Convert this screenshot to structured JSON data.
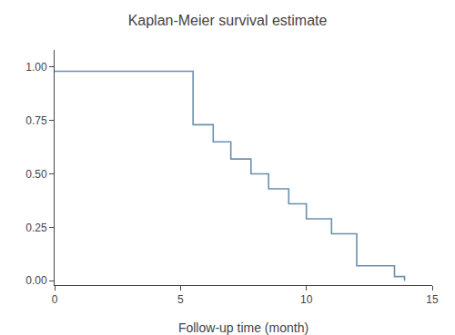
{
  "chart_data": {
    "type": "line",
    "title": "Kaplan-Meier survival estimate",
    "xlabel": "Follow-up time (month)",
    "color": "#6b8fad",
    "x": [
      0,
      5.5,
      5.5,
      6.3,
      6.3,
      7.0,
      7.0,
      7.8,
      7.8,
      8.5,
      8.5,
      9.3,
      9.3,
      10.0,
      10.0,
      11.0,
      11.0,
      12.0,
      12.0,
      13.5,
      13.5,
      13.9,
      13.9
    ],
    "values": [
      0.98,
      0.98,
      0.73,
      0.73,
      0.65,
      0.65,
      0.57,
      0.57,
      0.5,
      0.5,
      0.43,
      0.43,
      0.36,
      0.36,
      0.29,
      0.29,
      0.22,
      0.22,
      0.07,
      0.07,
      0.02,
      0.02,
      0.0
    ],
    "xlim": [
      0,
      15
    ],
    "ylim": [
      -0.02,
      1.08
    ],
    "xticks": [
      0,
      5,
      10,
      15
    ],
    "yticks": [
      {
        "value": 0,
        "label": "0.00"
      },
      {
        "value": 0.25,
        "label": "0.25"
      },
      {
        "value": 0.5,
        "label": "0.50"
      },
      {
        "value": 0.75,
        "label": "0.75"
      },
      {
        "value": 1,
        "label": "1.00"
      }
    ],
    "grid": false
  }
}
